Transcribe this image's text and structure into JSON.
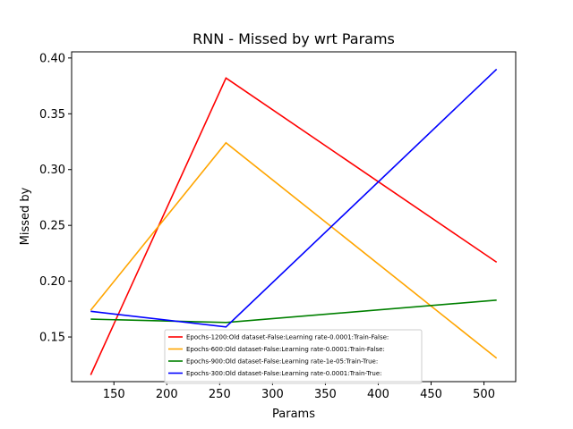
{
  "chart_data": {
    "type": "line",
    "title": "RNN - Missed by wrt Params",
    "xlabel": "Params",
    "ylabel": "Missed by",
    "xlim": [
      110,
      530
    ],
    "ylim": [
      0.11,
      0.4055
    ],
    "xticks": [
      150,
      200,
      250,
      300,
      350,
      400,
      450,
      500
    ],
    "yticks": [
      0.15,
      0.2,
      0.25,
      0.3,
      0.35,
      0.4
    ],
    "grid": false,
    "legend_position": "lower-center",
    "series": [
      {
        "name": "Epochs-1200:Old dataset-False:Learning rate-0.0001:Train-False:",
        "color": "#ff0000",
        "x": [
          128,
          256,
          512
        ],
        "y": [
          0.116,
          0.382,
          0.217
        ]
      },
      {
        "name": "Epochs-600:Old dataset-False:Learning rate-0.0001:Train-False:",
        "color": "#ffa500",
        "x": [
          128,
          256,
          512
        ],
        "y": [
          0.174,
          0.324,
          0.131
        ]
      },
      {
        "name": "Epochs-900:Old dataset-False:Learning rate-1e-05:Train-True:",
        "color": "#008000",
        "x": [
          128,
          256,
          512
        ],
        "y": [
          0.166,
          0.163,
          0.183
        ]
      },
      {
        "name": "Epochs-300:Old dataset-False:Learning rate-0.0001:Train-True:",
        "color": "#0000ff",
        "x": [
          128,
          256,
          512
        ],
        "y": [
          0.173,
          0.159,
          0.39
        ]
      }
    ]
  }
}
